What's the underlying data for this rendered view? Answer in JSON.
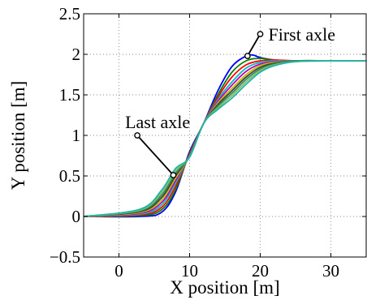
{
  "chart_data": {
    "type": "line",
    "title": "",
    "xlabel": "X position [m]",
    "ylabel": "Y position [m]",
    "xlim": [
      -5,
      35
    ],
    "ylim": [
      -0.5,
      2.5
    ],
    "xticks": [
      0,
      10,
      20,
      30
    ],
    "yticks": [
      -0.5,
      0,
      0.5,
      1,
      1.5,
      2,
      2.5
    ],
    "xtick_labels": [
      "0",
      "10",
      "20",
      "30"
    ],
    "ytick_labels": [
      "−0.5",
      "0",
      "0.5",
      "1",
      "1.5",
      "2",
      "2.5"
    ],
    "grid": true,
    "legend": "none",
    "y_start": 0,
    "y_end": 1.92,
    "series": [
      {
        "color": "#0000ff",
        "values_x": [
          -5,
          3,
          6,
          8,
          10,
          12,
          14,
          16,
          18,
          19,
          20,
          22,
          25,
          30,
          35
        ],
        "values_y": [
          0,
          0,
          0.05,
          0.3,
          0.8,
          1.15,
          1.55,
          1.85,
          1.98,
          1.99,
          1.96,
          1.93,
          1.92,
          1.92,
          1.92
        ]
      },
      {
        "color": "#008000",
        "values_x": [
          -5,
          3,
          6,
          8,
          10,
          12,
          14,
          16,
          18,
          20,
          22,
          25,
          30,
          35
        ],
        "values_y": [
          0,
          0.01,
          0.08,
          0.33,
          0.78,
          1.15,
          1.5,
          1.78,
          1.92,
          1.95,
          1.93,
          1.92,
          1.92,
          1.92
        ]
      },
      {
        "color": "#ff0000",
        "values_x": [
          -5,
          3,
          6,
          8,
          10,
          12,
          14,
          16,
          18,
          20,
          22,
          25,
          30,
          35
        ],
        "values_y": [
          0,
          0.02,
          0.11,
          0.37,
          0.77,
          1.15,
          1.47,
          1.72,
          1.87,
          1.92,
          1.93,
          1.92,
          1.92,
          1.92
        ]
      },
      {
        "color": "#00bfbf",
        "values_x": [
          -5,
          3,
          6,
          8,
          10,
          12,
          14,
          16,
          18,
          20,
          22,
          25,
          30,
          35
        ],
        "values_y": [
          0,
          0.03,
          0.14,
          0.41,
          0.76,
          1.15,
          1.44,
          1.66,
          1.83,
          1.9,
          1.92,
          1.92,
          1.92,
          1.92
        ]
      },
      {
        "color": "#bf00bf",
        "values_x": [
          -5,
          3,
          6,
          8,
          10,
          12,
          14,
          16,
          18,
          20,
          22,
          25,
          30,
          35
        ],
        "values_y": [
          0,
          0.04,
          0.17,
          0.44,
          0.76,
          1.15,
          1.42,
          1.62,
          1.79,
          1.88,
          1.91,
          1.92,
          1.92,
          1.92
        ]
      },
      {
        "color": "#bfbf00",
        "values_x": [
          -5,
          3,
          6,
          8,
          10,
          12,
          14,
          16,
          18,
          20,
          22,
          25,
          30,
          35
        ],
        "values_y": [
          0,
          0.05,
          0.2,
          0.47,
          0.75,
          1.15,
          1.4,
          1.58,
          1.75,
          1.86,
          1.9,
          1.92,
          1.92,
          1.92
        ]
      },
      {
        "color": "#404040",
        "values_x": [
          -5,
          3,
          6,
          8,
          10,
          12,
          14,
          16,
          18,
          20,
          22,
          25,
          30,
          35
        ],
        "values_y": [
          0,
          0.06,
          0.23,
          0.5,
          0.75,
          1.15,
          1.38,
          1.55,
          1.72,
          1.84,
          1.89,
          1.92,
          1.92,
          1.92
        ]
      },
      {
        "color": "#2e8b57",
        "values_x": [
          -5,
          3,
          6,
          8,
          10,
          12,
          14,
          16,
          18,
          20,
          22,
          25,
          30,
          35
        ],
        "values_y": [
          0,
          0.07,
          0.26,
          0.53,
          0.74,
          1.15,
          1.36,
          1.52,
          1.69,
          1.82,
          1.88,
          1.92,
          1.92,
          1.92
        ]
      },
      {
        "color": "#7fbf5f",
        "values_x": [
          -5,
          3,
          6,
          8,
          10,
          12,
          14,
          16,
          18,
          20,
          22,
          25,
          30,
          35
        ],
        "values_y": [
          0,
          0.08,
          0.29,
          0.56,
          0.74,
          1.15,
          1.34,
          1.49,
          1.66,
          1.8,
          1.87,
          1.91,
          1.92,
          1.92
        ]
      },
      {
        "color": "#20b2aa",
        "values_x": [
          -5,
          3,
          6,
          8,
          10,
          12,
          14,
          16,
          18,
          20,
          22,
          25,
          30,
          35
        ],
        "values_y": [
          0,
          0.09,
          0.32,
          0.59,
          0.73,
          1.15,
          1.32,
          1.46,
          1.63,
          1.78,
          1.86,
          1.91,
          1.92,
          1.92
        ]
      }
    ],
    "annotations": [
      {
        "text": "First axle",
        "point": [
          18.2,
          1.98
        ],
        "label_anchor": [
          20,
          2.25
        ]
      },
      {
        "text": "Last axle",
        "point": [
          7.7,
          0.51
        ],
        "label_anchor": [
          2.6,
          1.0
        ]
      }
    ]
  }
}
